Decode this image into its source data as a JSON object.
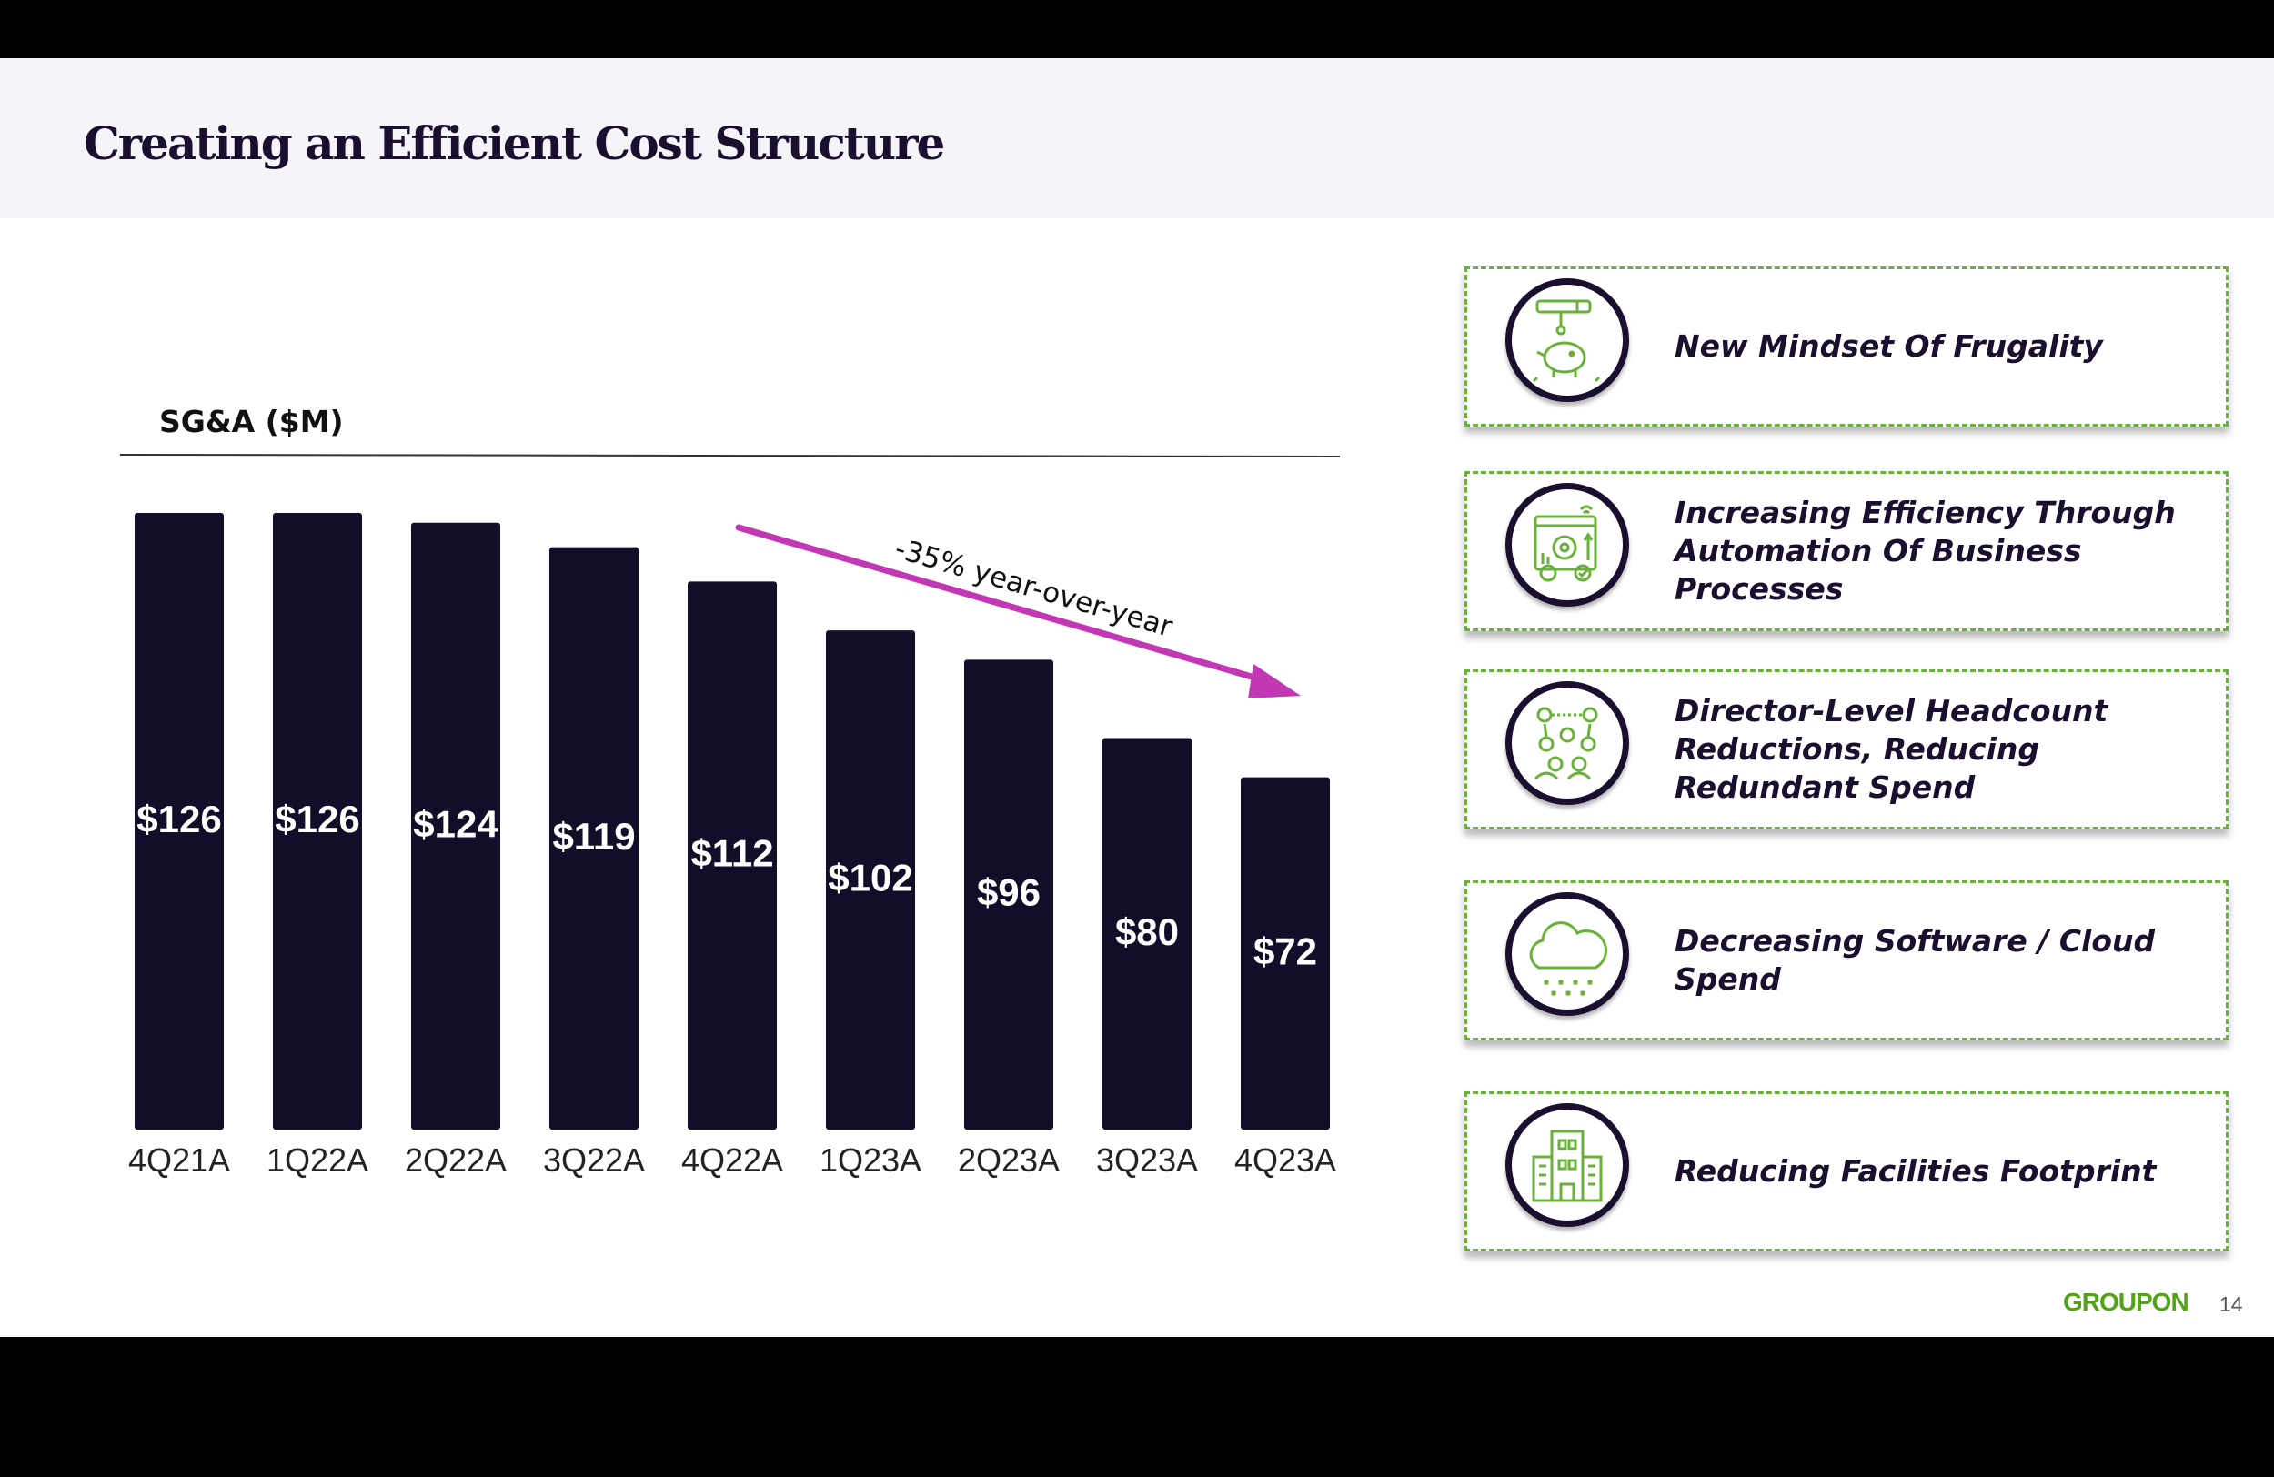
{
  "slide": {
    "title": "Creating an Efficient Cost Structure",
    "page_number": "14",
    "logo_text": "GROUPON"
  },
  "chart_data": {
    "type": "bar",
    "title": "SG&A ($M)",
    "categories": [
      "4Q21A",
      "1Q22A",
      "2Q22A",
      "3Q22A",
      "4Q22A",
      "1Q23A",
      "2Q23A",
      "3Q23A",
      "4Q23A"
    ],
    "values": [
      126,
      126,
      124,
      119,
      112,
      102,
      96,
      80,
      72
    ],
    "data_labels": [
      "$126",
      "$126",
      "$124",
      "$119",
      "$112",
      "$102",
      "$96",
      "$80",
      "$72"
    ],
    "annotation": "-35% year-over-year",
    "xlabel": "",
    "ylabel": "",
    "ylim": [
      0,
      130
    ],
    "grid": false,
    "bar_color": "#120d28",
    "annotation_color": "#c238b4"
  },
  "initiatives": [
    {
      "label": "New Mindset Of Frugality",
      "icon": "piggy-bank-icon"
    },
    {
      "label": "Increasing Efficiency Through Automation Of Business Processes",
      "icon": "automation-icon"
    },
    {
      "label": "Director-Level Headcount Reductions, Reducing Redundant Spend",
      "icon": "team-network-icon"
    },
    {
      "label": "Decreasing Software / Cloud Spend",
      "icon": "cloud-icon"
    },
    {
      "label": "Reducing Facilities Footprint",
      "icon": "building-icon"
    }
  ],
  "colors": {
    "accent_green": "#6ab13a",
    "navy": "#1a0f2e",
    "logo_green": "#53a318"
  }
}
